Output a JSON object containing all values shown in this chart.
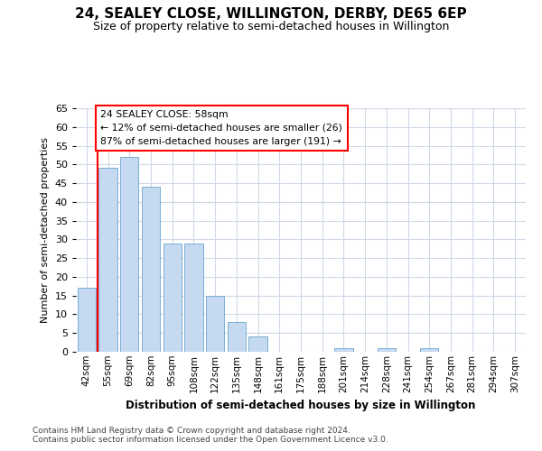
{
  "title": "24, SEALEY CLOSE, WILLINGTON, DERBY, DE65 6EP",
  "subtitle": "Size of property relative to semi-detached houses in Willington",
  "xlabel": "Distribution of semi-detached houses by size in Willington",
  "ylabel": "Number of semi-detached properties",
  "categories": [
    "42sqm",
    "55sqm",
    "69sqm",
    "82sqm",
    "95sqm",
    "108sqm",
    "122sqm",
    "135sqm",
    "148sqm",
    "161sqm",
    "175sqm",
    "188sqm",
    "201sqm",
    "214sqm",
    "228sqm",
    "241sqm",
    "254sqm",
    "267sqm",
    "281sqm",
    "294sqm",
    "307sqm"
  ],
  "values": [
    17,
    49,
    52,
    44,
    29,
    29,
    15,
    8,
    4,
    0,
    0,
    0,
    1,
    0,
    1,
    0,
    1,
    0,
    0,
    0,
    0
  ],
  "bar_color": "#c5d9f0",
  "bar_edge_color": "#7bafd4",
  "annotation_text": "24 SEALEY CLOSE: 58sqm\n← 12% of semi-detached houses are smaller (26)\n87% of semi-detached houses are larger (191) →",
  "red_line_x": 0.5,
  "ylim": [
    0,
    65
  ],
  "yticks": [
    0,
    5,
    10,
    15,
    20,
    25,
    30,
    35,
    40,
    45,
    50,
    55,
    60,
    65
  ],
  "footer1": "Contains HM Land Registry data © Crown copyright and database right 2024.",
  "footer2": "Contains public sector information licensed under the Open Government Licence v3.0.",
  "bg_color": "#ffffff",
  "grid_color": "#d0d8e8"
}
